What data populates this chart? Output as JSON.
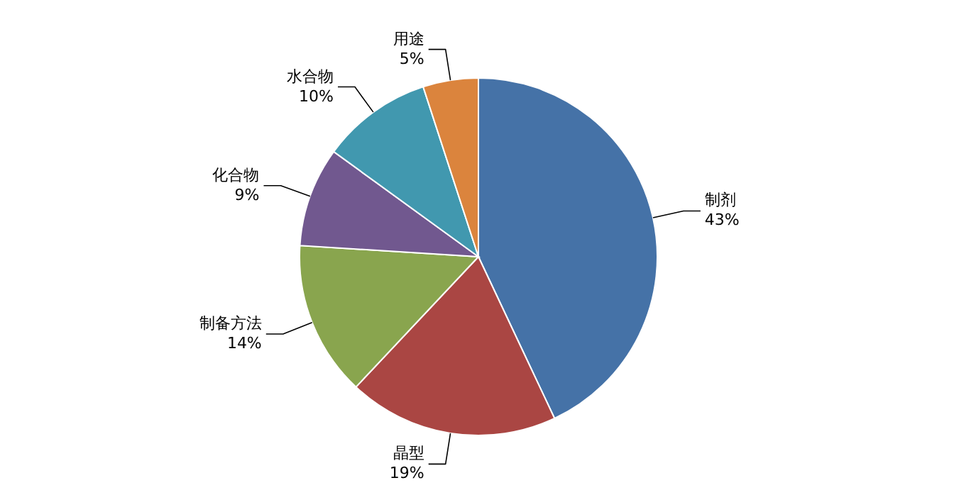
{
  "chart_data": {
    "type": "pie",
    "categories": [
      "制剂",
      "晶型",
      "制备方法",
      "化合物",
      "水合物",
      "用途"
    ],
    "values": [
      43,
      19,
      14,
      9,
      10,
      5
    ],
    "value_labels": [
      "43%",
      "19%",
      "14%",
      "9%",
      "10%",
      "5%"
    ],
    "colors": [
      "#4572a7",
      "#aa4643",
      "#89a54e",
      "#71588f",
      "#4198af",
      "#db843d"
    ],
    "legend": false
  }
}
